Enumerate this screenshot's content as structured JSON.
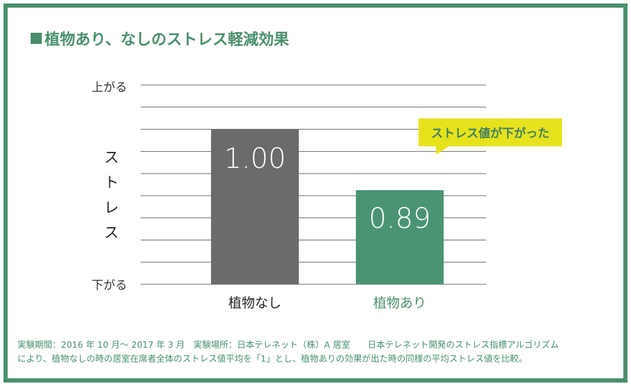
{
  "title": "植物あり、なしのストレス軽減効果",
  "chart_data": {
    "type": "bar",
    "categories": [
      "植物なし",
      "植物あり"
    ],
    "values": [
      1.0,
      0.89
    ],
    "value_labels": [
      "1.00",
      "0.89"
    ],
    "bar_colors": [
      "#6b6b6d",
      "#4a9474"
    ],
    "category_label_colors": [
      "#222222",
      "#4a8f6c"
    ],
    "ylabel": "ストレス",
    "ytick_top": "上がる",
    "ytick_bottom": "下がる",
    "ylim": [
      0.72,
      1.08
    ],
    "gridlines": 10,
    "grid": true,
    "annotation": "ストレス値が下がった"
  },
  "colors": {
    "accent": "#4a8f6c",
    "annotation_bg": "#e6e21c",
    "grid": "#6f6f6f"
  },
  "footnote": {
    "line1": "実験期間：2016 年 10 月〜 2017 年 3 月　実験場所：日本テレネット（株）A 居室　　日本テレネット開発のストレス指標アルゴリズム",
    "line2": "により、植物なしの時の居室在席者全体のストレス値平均を「1」とし、植物ありの効果が出た時の同様の平均ストレス値を比較。"
  }
}
